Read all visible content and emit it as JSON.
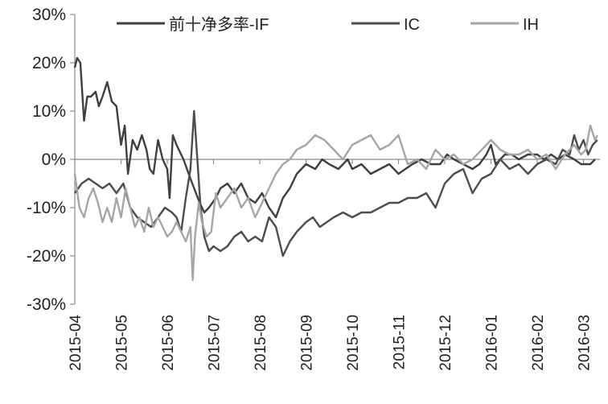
{
  "chart_data": {
    "type": "line",
    "title": "",
    "xlabel": "",
    "ylabel": "",
    "ylim": [
      -30,
      30
    ],
    "yticks": [
      "30%",
      "20%",
      "10%",
      "0%",
      "-10%",
      "-20%",
      "-30%"
    ],
    "ytick_values": [
      30,
      20,
      10,
      0,
      -10,
      -20,
      -30
    ],
    "categories": [
      "2015-04",
      "2015-05",
      "2015-06",
      "2015-07",
      "2015-08",
      "2015-09",
      "2015-10",
      "2015-11",
      "2015-12",
      "2016-01",
      "2016-02",
      "2016-03"
    ],
    "xlim": [
      0,
      11.3
    ],
    "grid": false,
    "legend": "top",
    "series": [
      {
        "name": "前十净多率-IF",
        "color": "#3f3f3f",
        "x": [
          0,
          0.05,
          0.12,
          0.2,
          0.27,
          0.35,
          0.45,
          0.52,
          0.6,
          0.7,
          0.8,
          0.9,
          1.0,
          1.08,
          1.15,
          1.25,
          1.35,
          1.45,
          1.55,
          1.62,
          1.7,
          1.8,
          1.9,
          2.0,
          2.05,
          2.12,
          2.2,
          2.35,
          2.5,
          2.62,
          2.7,
          2.8,
          2.9,
          3.05,
          3.15,
          3.3,
          3.45,
          3.6,
          3.75,
          3.9,
          4.05,
          4.2,
          4.35,
          4.5,
          4.65,
          4.8,
          5.0,
          5.2,
          5.35,
          5.5,
          5.7,
          5.9,
          6.0,
          6.2,
          6.4,
          6.6,
          6.8,
          7.0,
          7.15,
          7.3,
          7.5,
          7.7,
          7.9,
          8.05,
          8.2,
          8.4,
          8.6,
          8.75,
          8.9,
          9.0,
          9.1,
          9.2,
          9.3,
          9.45,
          9.6,
          9.8,
          10.0,
          10.15,
          10.3,
          10.45,
          10.6,
          10.8,
          10.95,
          11.05,
          11.15,
          11.25
        ],
        "y": [
          19,
          21,
          20,
          8,
          13,
          13,
          14,
          11,
          13,
          16,
          12,
          11,
          3,
          7,
          -3,
          4,
          2,
          5,
          2,
          -2,
          -3,
          4,
          0,
          -2,
          -8,
          5,
          3,
          0,
          -4,
          -7,
          -9,
          -11,
          -10,
          -8,
          -6,
          -5,
          -7,
          -5,
          -8,
          -9,
          -7,
          -10,
          -12,
          -8,
          -6,
          -3,
          -1,
          -2,
          0,
          -1,
          -2,
          0,
          -2,
          -1,
          -3,
          -2,
          -1,
          -3,
          -2,
          -1,
          0,
          -1,
          -1,
          1,
          0,
          -1,
          -2,
          -1,
          1,
          3,
          -1,
          0,
          1,
          1,
          0,
          1,
          1,
          0,
          1,
          0,
          1,
          0,
          -1,
          -1,
          -1,
          0
        ]
      },
      {
        "name": "IC",
        "color": "#4d4d4d",
        "x": [
          0,
          0.15,
          0.3,
          0.45,
          0.6,
          0.75,
          0.9,
          1.05,
          1.2,
          1.35,
          1.5,
          1.65,
          1.8,
          1.95,
          2.1,
          2.2,
          2.3,
          2.4,
          2.5,
          2.58,
          2.65,
          2.72,
          2.8,
          2.9,
          3.0,
          3.15,
          3.3,
          3.45,
          3.6,
          3.75,
          3.9,
          4.05,
          4.2,
          4.35,
          4.5,
          4.65,
          4.8,
          5.0,
          5.15,
          5.3,
          5.45,
          5.6,
          5.8,
          6.0,
          6.2,
          6.4,
          6.6,
          6.8,
          7.0,
          7.2,
          7.4,
          7.6,
          7.8,
          8.0,
          8.2,
          8.4,
          8.6,
          8.8,
          9.0,
          9.2,
          9.4,
          9.6,
          9.8,
          10.0,
          10.2,
          10.4,
          10.55,
          10.7,
          10.8,
          10.9,
          11.0,
          11.1,
          11.2,
          11.3
        ],
        "y": [
          -7,
          -5,
          -4,
          -5,
          -6,
          -5,
          -7,
          -5,
          -10,
          -12,
          -13,
          -14,
          -12,
          -10,
          -11,
          -12,
          -15,
          -8,
          -2,
          10,
          0,
          -10,
          -16,
          -19,
          -18,
          -19,
          -18,
          -16,
          -15,
          -17,
          -16,
          -17,
          -12,
          -14,
          -20,
          -17,
          -15,
          -13,
          -12,
          -14,
          -13,
          -12,
          -11,
          -12,
          -11,
          -11,
          -10,
          -9,
          -9,
          -8,
          -8,
          -7,
          -10,
          -5,
          -3,
          -2,
          -7,
          -4,
          -3,
          0,
          -2,
          -1,
          -3,
          -1,
          0,
          -1,
          2,
          1,
          5,
          2,
          4,
          1,
          3,
          4
        ]
      },
      {
        "name": "IH",
        "color": "#a6a6a6",
        "x": [
          0,
          0.1,
          0.2,
          0.3,
          0.4,
          0.5,
          0.6,
          0.7,
          0.8,
          0.9,
          1.0,
          1.1,
          1.2,
          1.3,
          1.4,
          1.5,
          1.6,
          1.7,
          1.8,
          1.9,
          2.0,
          2.1,
          2.2,
          2.3,
          2.4,
          2.5,
          2.55,
          2.6,
          2.68,
          2.75,
          2.85,
          2.95,
          3.05,
          3.15,
          3.3,
          3.45,
          3.6,
          3.75,
          3.9,
          4.05,
          4.2,
          4.35,
          4.5,
          4.65,
          4.8,
          5.0,
          5.2,
          5.4,
          5.6,
          5.8,
          6.0,
          6.2,
          6.4,
          6.6,
          6.8,
          7.0,
          7.2,
          7.4,
          7.6,
          7.8,
          8.0,
          8.2,
          8.4,
          8.6,
          8.8,
          9.0,
          9.2,
          9.4,
          9.6,
          9.8,
          10.0,
          10.2,
          10.4,
          10.6,
          10.8,
          10.95,
          11.05,
          11.15,
          11.25,
          11.3
        ],
        "y": [
          -3,
          -10,
          -12,
          -8,
          -6,
          -9,
          -13,
          -10,
          -13,
          -8,
          -12,
          -6,
          -10,
          -14,
          -12,
          -15,
          -10,
          -14,
          -12,
          -14,
          -16,
          -15,
          -13,
          -15,
          -17,
          -14,
          -25,
          -16,
          -9,
          -13,
          -16,
          -15,
          -7,
          -10,
          -8,
          -6,
          -10,
          -8,
          -12,
          -9,
          -6,
          -3,
          -1,
          0,
          2,
          3,
          5,
          4,
          2,
          0,
          3,
          4,
          5,
          2,
          3,
          5,
          -1,
          0,
          -2,
          2,
          0,
          1,
          -1,
          0,
          2,
          4,
          2,
          1,
          1,
          2,
          0,
          1,
          -2,
          1,
          3,
          1,
          2,
          7,
          4,
          5
        ]
      }
    ]
  }
}
